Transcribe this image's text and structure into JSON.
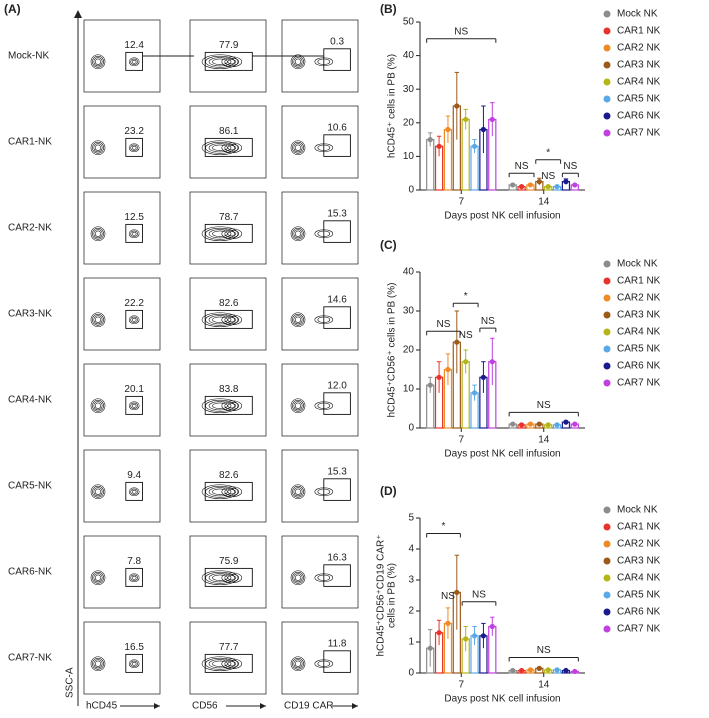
{
  "panel_a": {
    "label": "(A)",
    "y_label": "SSC-A",
    "x_labels": [
      "hCD45",
      "CD56",
      "CD19 CAR"
    ],
    "rows": [
      {
        "name": "Mock-NK",
        "gates": [
          "12.4",
          "77.9",
          "0.3"
        ]
      },
      {
        "name": "CAR1-NK",
        "gates": [
          "23.2",
          "86.1",
          "10.6"
        ]
      },
      {
        "name": "CAR2-NK",
        "gates": [
          "12.5",
          "78.7",
          "15.3"
        ]
      },
      {
        "name": "CAR3-NK",
        "gates": [
          "22.2",
          "82.6",
          "14.6"
        ]
      },
      {
        "name": "CAR4-NK",
        "gates": [
          "20.1",
          "83.8",
          "12.0"
        ]
      },
      {
        "name": "CAR5-NK",
        "gates": [
          "9.4",
          "82.6",
          "15.3"
        ]
      },
      {
        "name": "CAR6-NK",
        "gates": [
          "7.8",
          "75.9",
          "16.3"
        ]
      },
      {
        "name": "CAR7-NK",
        "gates": [
          "16.5",
          "77.7",
          "11.8"
        ]
      }
    ]
  },
  "chart_data": [
    {
      "type": "bar",
      "label": "(B)",
      "y_label": [
        "hCD45⁺ cells in PB (%)"
      ],
      "x_label": "Days post NK cell infusion",
      "categories": [
        "7",
        "14"
      ],
      "ylim": [
        0,
        50
      ],
      "yticks": [
        0,
        10,
        20,
        30,
        40,
        50
      ],
      "series": [
        {
          "name": "Mock NK",
          "color": "#8c8c8c",
          "values": [
            15,
            1.5
          ],
          "errors": [
            2,
            0.3
          ]
        },
        {
          "name": "CAR1 NK",
          "color": "#e8332a",
          "values": [
            13,
            1
          ],
          "errors": [
            3,
            0.3
          ]
        },
        {
          "name": "CAR2 NK",
          "color": "#f08a24",
          "values": [
            18,
            1.5
          ],
          "errors": [
            4,
            0.4
          ]
        },
        {
          "name": "CAR3 NK",
          "color": "#9b5a1a",
          "values": [
            25,
            2.5
          ],
          "errors": [
            10,
            1
          ]
        },
        {
          "name": "CAR4 NK",
          "color": "#b5b51a",
          "values": [
            21,
            1
          ],
          "errors": [
            3,
            0.3
          ]
        },
        {
          "name": "CAR5 NK",
          "color": "#5aa9e6",
          "values": [
            13,
            1
          ],
          "errors": [
            2,
            0.3
          ]
        },
        {
          "name": "CAR6 NK",
          "color": "#1a1a8c",
          "values": [
            18,
            2.5
          ],
          "errors": [
            7,
            0.8
          ]
        },
        {
          "name": "CAR7 NK",
          "color": "#c040e0",
          "values": [
            21,
            1.5
          ],
          "errors": [
            5,
            0.3
          ]
        }
      ],
      "annotations": [
        "NS",
        "NS",
        "*",
        "NS",
        "NS"
      ]
    },
    {
      "type": "bar",
      "label": "(C)",
      "y_label": [
        "hCD45⁺CD56⁺ cells in PB (%)"
      ],
      "x_label": "Days post NK cell infusion",
      "categories": [
        "7",
        "14"
      ],
      "ylim": [
        0,
        40
      ],
      "yticks": [
        0,
        10,
        20,
        30,
        40
      ],
      "series": [
        {
          "name": "Mock NK",
          "color": "#8c8c8c",
          "values": [
            11,
            1
          ],
          "errors": [
            2,
            0.3
          ]
        },
        {
          "name": "CAR1 NK",
          "color": "#e8332a",
          "values": [
            13,
            0.8
          ],
          "errors": [
            4,
            0.3
          ]
        },
        {
          "name": "CAR2 NK",
          "color": "#f08a24",
          "values": [
            15,
            1
          ],
          "errors": [
            4,
            0.3
          ]
        },
        {
          "name": "CAR3 NK",
          "color": "#9b5a1a",
          "values": [
            22,
            1
          ],
          "errors": [
            8,
            0.3
          ]
        },
        {
          "name": "CAR4 NK",
          "color": "#b5b51a",
          "values": [
            17,
            0.8
          ],
          "errors": [
            3,
            0.3
          ]
        },
        {
          "name": "CAR5 NK",
          "color": "#5aa9e6",
          "values": [
            9,
            0.8
          ],
          "errors": [
            2,
            0.3
          ]
        },
        {
          "name": "CAR6 NK",
          "color": "#1a1a8c",
          "values": [
            13,
            1.5
          ],
          "errors": [
            4,
            0.3
          ]
        },
        {
          "name": "CAR7 NK",
          "color": "#c040e0",
          "values": [
            17,
            1
          ],
          "errors": [
            6,
            0.3
          ]
        }
      ],
      "annotations": [
        "NS",
        "*",
        "NS",
        "NS",
        "NS"
      ]
    },
    {
      "type": "bar",
      "label": "(D)",
      "y_label": [
        "hCD45⁺CD56⁺CD19 CAR⁺",
        "cells in PB (%)"
      ],
      "x_label": "Days post NK cell infusion",
      "categories": [
        "7",
        "14"
      ],
      "ylim": [
        0,
        5
      ],
      "yticks": [
        0,
        1,
        2,
        3,
        4,
        5
      ],
      "series": [
        {
          "name": "Mock NK",
          "color": "#8c8c8c",
          "values": [
            0.8,
            0.08
          ],
          "errors": [
            0.6,
            0.03
          ]
        },
        {
          "name": "CAR1 NK",
          "color": "#e8332a",
          "values": [
            1.3,
            0.08
          ],
          "errors": [
            0.4,
            0.03
          ]
        },
        {
          "name": "CAR2 NK",
          "color": "#f08a24",
          "values": [
            1.6,
            0.1
          ],
          "errors": [
            0.5,
            0.03
          ]
        },
        {
          "name": "CAR3 NK",
          "color": "#9b5a1a",
          "values": [
            2.6,
            0.15
          ],
          "errors": [
            1.2,
            0.03
          ]
        },
        {
          "name": "CAR4 NK",
          "color": "#b5b51a",
          "values": [
            1.1,
            0.1
          ],
          "errors": [
            0.4,
            0.03
          ]
        },
        {
          "name": "CAR5 NK",
          "color": "#5aa9e6",
          "values": [
            1.2,
            0.1
          ],
          "errors": [
            0.3,
            0.03
          ]
        },
        {
          "name": "CAR6 NK",
          "color": "#1a1a8c",
          "values": [
            1.2,
            0.08
          ],
          "errors": [
            0.4,
            0.03
          ]
        },
        {
          "name": "CAR7 NK",
          "color": "#c040e0",
          "values": [
            1.5,
            0.05
          ],
          "errors": [
            0.3,
            0.03
          ]
        }
      ],
      "annotations": [
        "*",
        "NS",
        "NS",
        "NS"
      ]
    }
  ]
}
